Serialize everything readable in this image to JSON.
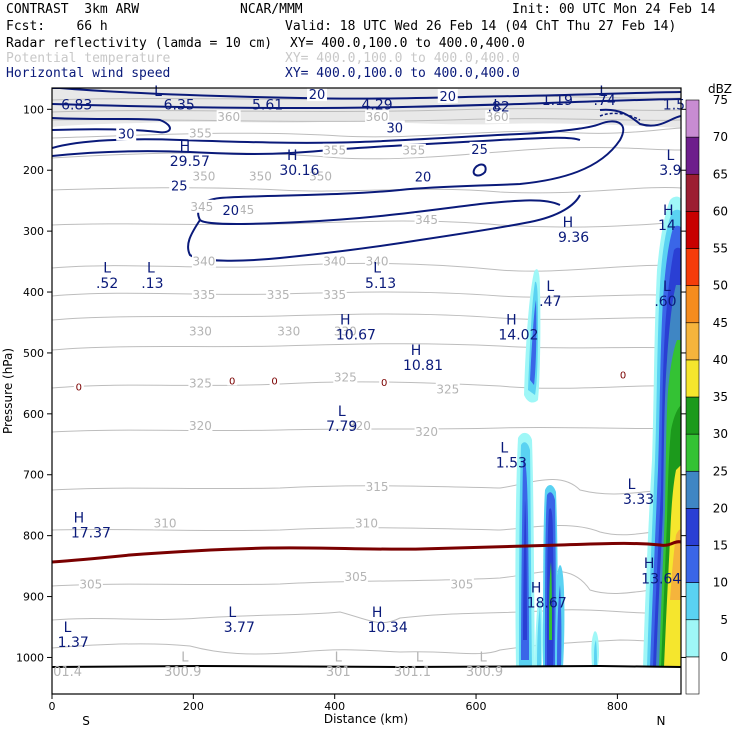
{
  "header": {
    "model": "CONTRAST  3km ARW",
    "center": "NCAR/MMM",
    "init": "Init: 00 UTC Mon 24 Feb 14",
    "fcst": "Fcst:    66 h",
    "valid": "Valid: 18 UTC Wed 26 Feb 14 (04 ChT Thu 27 Feb 14)",
    "fields": [
      {
        "name": "Radar reflectivity (lamda = 10 cm)",
        "xy": "XY= 400.0,100.0 to 400.0,400.0",
        "style": "black"
      },
      {
        "name": "Potential temperature",
        "xy": "XY= 400.0,100.0 to 400.0,400.0",
        "style": "grey"
      },
      {
        "name": "Horizontal wind speed",
        "xy": "XY= 400.0,100.0 to 400.0,400.0",
        "style": "navy"
      }
    ]
  },
  "chart_data": {
    "type": "cross-section",
    "xlabel": "Distance (km)",
    "ylabel": "Pressure (hPa)",
    "xlim": [
      0,
      890
    ],
    "ylim": [
      1060,
      65
    ],
    "xticks": [
      0,
      200,
      400,
      600,
      800
    ],
    "yticks": [
      100,
      200,
      300,
      400,
      500,
      600,
      700,
      800,
      900,
      1000
    ],
    "x_end_labels": {
      "left": "S",
      "right": "N"
    },
    "colorbar": {
      "unit": "dBZ",
      "levels": [
        "0",
        "5",
        "10",
        "15",
        "20",
        "25",
        "30",
        "35",
        "40",
        "45",
        "50",
        "55",
        "60",
        "65",
        "70",
        "75"
      ],
      "colors": [
        "#ffffff",
        "#9ff7f7",
        "#5ad2f2",
        "#3a66e8",
        "#2a3fd4",
        "#3f86c4",
        "#34c234",
        "#1c9a1c",
        "#f5e62d",
        "#f5b43c",
        "#f58c1e",
        "#f53c0a",
        "#c80000",
        "#9c1e32",
        "#6e1e8c",
        "#c88cd2"
      ]
    },
    "wind_contour_labels": [
      {
        "x": 105,
        "p": 140,
        "text": "30"
      },
      {
        "x": 375,
        "p": 75,
        "text": "20"
      },
      {
        "x": 560,
        "p": 78,
        "text": "20"
      },
      {
        "x": 485,
        "p": 130,
        "text": "30"
      },
      {
        "x": 605,
        "p": 165,
        "text": "25"
      },
      {
        "x": 525,
        "p": 210,
        "text": "20"
      },
      {
        "x": 180,
        "p": 225,
        "text": "25"
      },
      {
        "x": 253,
        "p": 265,
        "text": "20"
      }
    ],
    "theta_labels": [
      {
        "x": 250,
        "p": 113,
        "text": "360"
      },
      {
        "x": 460,
        "p": 113,
        "text": "360"
      },
      {
        "x": 630,
        "p": 113,
        "text": "360"
      },
      {
        "x": 210,
        "p": 140,
        "text": "355"
      },
      {
        "x": 400,
        "p": 168,
        "text": "355"
      },
      {
        "x": 512,
        "p": 168,
        "text": "355"
      },
      {
        "x": 215,
        "p": 210,
        "text": "350"
      },
      {
        "x": 295,
        "p": 210,
        "text": "350"
      },
      {
        "x": 380,
        "p": 210,
        "text": "350"
      },
      {
        "x": 212,
        "p": 260,
        "text": "345"
      },
      {
        "x": 270,
        "p": 265,
        "text": "345"
      },
      {
        "x": 530,
        "p": 282,
        "text": "345"
      },
      {
        "x": 215,
        "p": 350,
        "text": "340"
      },
      {
        "x": 400,
        "p": 350,
        "text": "340"
      },
      {
        "x": 460,
        "p": 350,
        "text": "340"
      },
      {
        "x": 215,
        "p": 405,
        "text": "335"
      },
      {
        "x": 320,
        "p": 405,
        "text": "335"
      },
      {
        "x": 400,
        "p": 405,
        "text": "335"
      },
      {
        "x": 210,
        "p": 465,
        "text": "330"
      },
      {
        "x": 335,
        "p": 465,
        "text": "330"
      },
      {
        "x": 415,
        "p": 465,
        "text": "330"
      },
      {
        "x": 210,
        "p": 550,
        "text": "325"
      },
      {
        "x": 415,
        "p": 540,
        "text": "325"
      },
      {
        "x": 560,
        "p": 560,
        "text": "325"
      },
      {
        "x": 210,
        "p": 620,
        "text": "320"
      },
      {
        "x": 435,
        "p": 620,
        "text": "320"
      },
      {
        "x": 530,
        "p": 630,
        "text": "320"
      },
      {
        "x": 460,
        "p": 720,
        "text": "315"
      },
      {
        "x": 160,
        "p": 780,
        "text": "310"
      },
      {
        "x": 445,
        "p": 780,
        "text": "310"
      },
      {
        "x": 55,
        "p": 880,
        "text": "305"
      },
      {
        "x": 430,
        "p": 868,
        "text": "305"
      },
      {
        "x": 580,
        "p": 880,
        "text": "305"
      }
    ],
    "theta_hl": [
      {
        "x": 188,
        "p": 1000,
        "text": "L"
      },
      {
        "x": 185,
        "p": 1024,
        "text": "300.9"
      },
      {
        "x": 405,
        "p": 1000,
        "text": "L"
      },
      {
        "x": 405,
        "p": 1024,
        "text": "301"
      },
      {
        "x": 520,
        "p": 1000,
        "text": "L"
      },
      {
        "x": 510,
        "p": 1024,
        "text": "301.1"
      },
      {
        "x": 610,
        "p": 1000,
        "text": "L"
      },
      {
        "x": 612,
        "p": 1024,
        "text": "300.9"
      },
      {
        "x": 22,
        "p": 1024,
        "text": "01.4"
      }
    ],
    "wind_hl": [
      {
        "x": 150,
        "p": 70,
        "text": "L"
      },
      {
        "x": 35,
        "p": 92,
        "text": "6.83"
      },
      {
        "x": 180,
        "p": 92,
        "text": "6.35"
      },
      {
        "x": 305,
        "p": 92,
        "text": "5.61"
      },
      {
        "x": 460,
        "p": 92,
        "text": "4.29"
      },
      {
        "x": 630,
        "p": 92,
        "text": "L"
      },
      {
        "x": 632,
        "p": 95,
        "text": ".82"
      },
      {
        "x": 715,
        "p": 85,
        "text": "1.19"
      },
      {
        "x": 780,
        "p": 70,
        "text": "L"
      },
      {
        "x": 782,
        "p": 85,
        "text": ".74"
      },
      {
        "x": 880,
        "p": 92,
        "text": "1.5"
      },
      {
        "x": 188,
        "p": 160,
        "text": "H"
      },
      {
        "x": 195,
        "p": 185,
        "text": "29.57"
      },
      {
        "x": 340,
        "p": 175,
        "text": "H"
      },
      {
        "x": 350,
        "p": 200,
        "text": "30.16"
      },
      {
        "x": 875,
        "p": 175,
        "text": "L"
      },
      {
        "x": 875,
        "p": 200,
        "text": "3.9"
      },
      {
        "x": 872,
        "p": 265,
        "text": "H"
      },
      {
        "x": 870,
        "p": 290,
        "text": "14"
      },
      {
        "x": 730,
        "p": 285,
        "text": "H"
      },
      {
        "x": 738,
        "p": 310,
        "text": "9.36"
      },
      {
        "x": 78,
        "p": 360,
        "text": "L"
      },
      {
        "x": 78,
        "p": 385,
        "text": ".52"
      },
      {
        "x": 140,
        "p": 360,
        "text": "L"
      },
      {
        "x": 142,
        "p": 385,
        "text": ".13"
      },
      {
        "x": 460,
        "p": 360,
        "text": "L"
      },
      {
        "x": 465,
        "p": 385,
        "text": "5.13"
      },
      {
        "x": 705,
        "p": 390,
        "text": "L"
      },
      {
        "x": 705,
        "p": 415,
        "text": ".47"
      },
      {
        "x": 870,
        "p": 390,
        "text": "L"
      },
      {
        "x": 868,
        "p": 415,
        "text": ".60"
      },
      {
        "x": 415,
        "p": 445,
        "text": "H"
      },
      {
        "x": 430,
        "p": 470,
        "text": "10.67"
      },
      {
        "x": 650,
        "p": 445,
        "text": "H"
      },
      {
        "x": 660,
        "p": 470,
        "text": "14.02"
      },
      {
        "x": 515,
        "p": 495,
        "text": "H"
      },
      {
        "x": 525,
        "p": 520,
        "text": "10.81"
      },
      {
        "x": 410,
        "p": 595,
        "text": "L"
      },
      {
        "x": 410,
        "p": 620,
        "text": "7.79"
      },
      {
        "x": 640,
        "p": 655,
        "text": "L"
      },
      {
        "x": 650,
        "p": 680,
        "text": "1.53"
      },
      {
        "x": 820,
        "p": 715,
        "text": "L"
      },
      {
        "x": 830,
        "p": 740,
        "text": "3.33"
      },
      {
        "x": 38,
        "p": 770,
        "text": "H"
      },
      {
        "x": 55,
        "p": 795,
        "text": "17.37"
      },
      {
        "x": 845,
        "p": 845,
        "text": "H"
      },
      {
        "x": 862,
        "p": 870,
        "text": "13.64"
      },
      {
        "x": 685,
        "p": 885,
        "text": "H"
      },
      {
        "x": 700,
        "p": 910,
        "text": "18.67"
      },
      {
        "x": 255,
        "p": 925,
        "text": "L"
      },
      {
        "x": 265,
        "p": 950,
        "text": "3.77"
      },
      {
        "x": 460,
        "p": 925,
        "text": "H"
      },
      {
        "x": 475,
        "p": 950,
        "text": "10.34"
      },
      {
        "x": 22,
        "p": 950,
        "text": "L"
      },
      {
        "x": 30,
        "p": 975,
        "text": "1.37"
      }
    ],
    "zero_labels": [
      {
        "x": 38,
        "p": 555,
        "text": "0"
      },
      {
        "x": 255,
        "p": 545,
        "text": "0"
      },
      {
        "x": 315,
        "p": 545,
        "text": "0"
      },
      {
        "x": 470,
        "p": 548,
        "text": "0"
      },
      {
        "x": 808,
        "p": 535,
        "text": "0"
      }
    ]
  }
}
